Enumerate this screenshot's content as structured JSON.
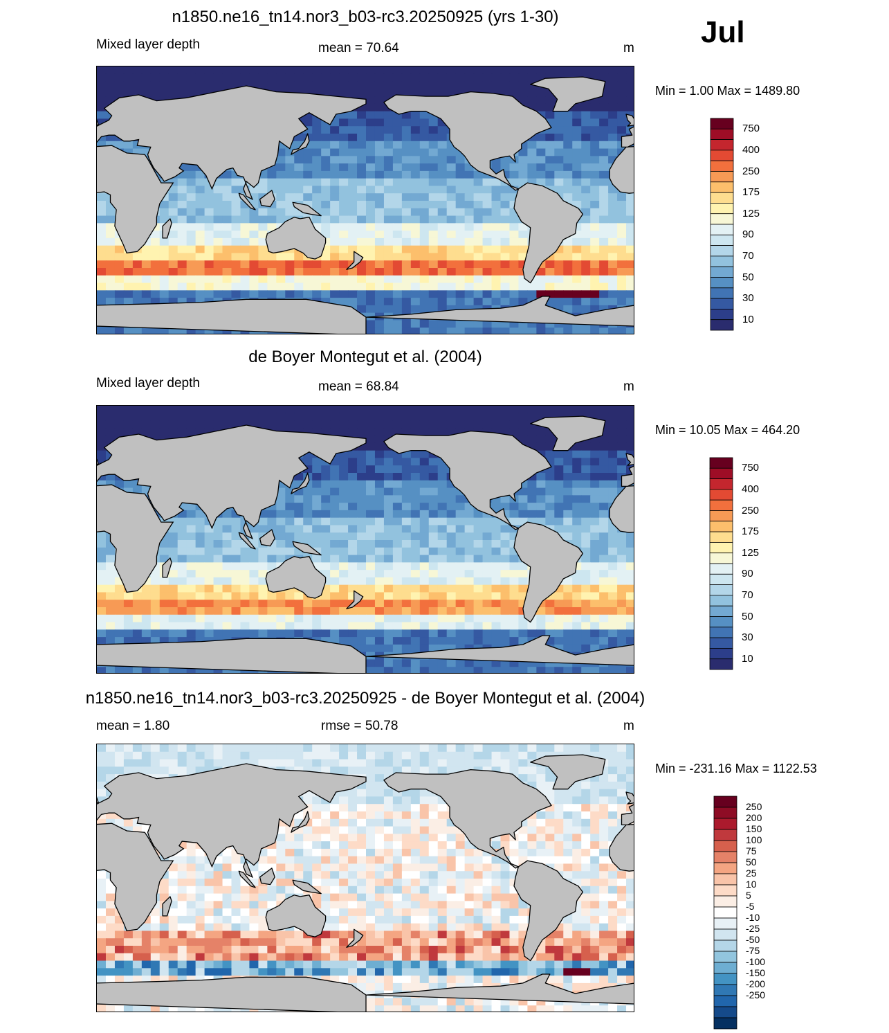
{
  "month_label": "Jul",
  "panels": [
    {
      "title": "n1850.ne16_tn14.nor3_b03-rc3.20250925 (yrs 1-30)",
      "left_label": "Mixed layer depth",
      "center_label": "mean =  70.64",
      "units": "m",
      "minmax": "Min =   1.00 Max = 1489.80",
      "colorbar_levels": [
        "750",
        "400",
        "250",
        "175",
        "125",
        "90",
        "70",
        "50",
        "30",
        "10"
      ],
      "colorbar_colors": [
        "#67001f",
        "#9e0d26",
        "#c4262e",
        "#e34a33",
        "#f2703d",
        "#f79a55",
        "#fcbf6c",
        "#fedd8f",
        "#fff3b0",
        "#f7f7d6",
        "#e3f1f4",
        "#cde6f0",
        "#b3d6e9",
        "#92c2de",
        "#73a9d2",
        "#5690c3",
        "#4174b4",
        "#3559a2",
        "#2c3e8a",
        "#2a2c6e"
      ],
      "field_type": "model"
    },
    {
      "title": "de Boyer Montegut et al. (2004)",
      "left_label": "Mixed layer depth",
      "center_label": "mean =  68.84",
      "units": "m",
      "minmax": "Min =  10.05 Max = 464.20",
      "colorbar_levels": [
        "750",
        "400",
        "250",
        "175",
        "125",
        "90",
        "70",
        "50",
        "30",
        "10"
      ],
      "colorbar_colors": [
        "#67001f",
        "#9e0d26",
        "#c4262e",
        "#e34a33",
        "#f2703d",
        "#f79a55",
        "#fcbf6c",
        "#fedd8f",
        "#fff3b0",
        "#f7f7d6",
        "#e3f1f4",
        "#cde6f0",
        "#b3d6e9",
        "#92c2de",
        "#73a9d2",
        "#5690c3",
        "#4174b4",
        "#3559a2",
        "#2c3e8a",
        "#2a2c6e"
      ],
      "field_type": "obs"
    },
    {
      "title": "n1850.ne16_tn14.nor3_b03-rc3.20250925 - de Boyer Montegut et al. (2004)",
      "left_label": "mean =   1.80",
      "center_label": "rmse =  50.78",
      "units": "m",
      "minmax": "Min = -231.16 Max = 1122.53",
      "colorbar_levels": [
        "250",
        "200",
        "150",
        "100",
        "75",
        "50",
        "25",
        "10",
        "5",
        "-5",
        "-10",
        "-25",
        "-50",
        "-75",
        "-100",
        "-150",
        "-200",
        "-250"
      ],
      "colorbar_colors": [
        "#67001f",
        "#8e0c25",
        "#ab1a2d",
        "#c0393d",
        "#d6604d",
        "#e58268",
        "#f4a582",
        "#f9c4a9",
        "#fddbc7",
        "#fbeee5",
        "#ffffff",
        "#e8f1f6",
        "#d1e5f0",
        "#b4d6e8",
        "#92c5de",
        "#6eaed2",
        "#4393c3",
        "#3078b4",
        "#2166ac",
        "#154a8a",
        "#053061"
      ],
      "field_type": "diff"
    }
  ],
  "land_color": "#c0c0c0"
}
